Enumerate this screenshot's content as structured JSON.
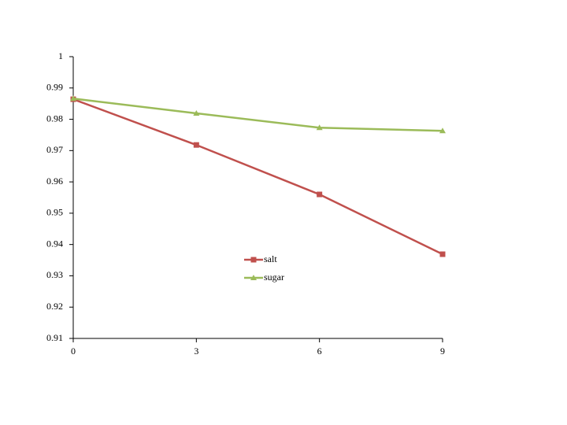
{
  "chart_data": {
    "type": "line",
    "x": [
      0,
      3,
      6,
      9
    ],
    "xlim": [
      0,
      9
    ],
    "xticks": [
      0,
      3,
      6,
      9
    ],
    "ylim": [
      0.91,
      1
    ],
    "yticks": [
      0.91,
      0.92,
      0.93,
      0.94,
      0.95,
      0.96,
      0.97,
      0.98,
      0.99,
      1
    ],
    "grid": false,
    "legend": "center",
    "series": [
      {
        "name": "salt",
        "color": "#c0504d",
        "marker": "square",
        "values": [
          0.9864,
          0.9718,
          0.956,
          0.9369
        ]
      },
      {
        "name": "sugar",
        "color": "#9bbb59",
        "marker": "triangle",
        "values": [
          0.9866,
          0.9819,
          0.9773,
          0.9763
        ]
      }
    ]
  }
}
